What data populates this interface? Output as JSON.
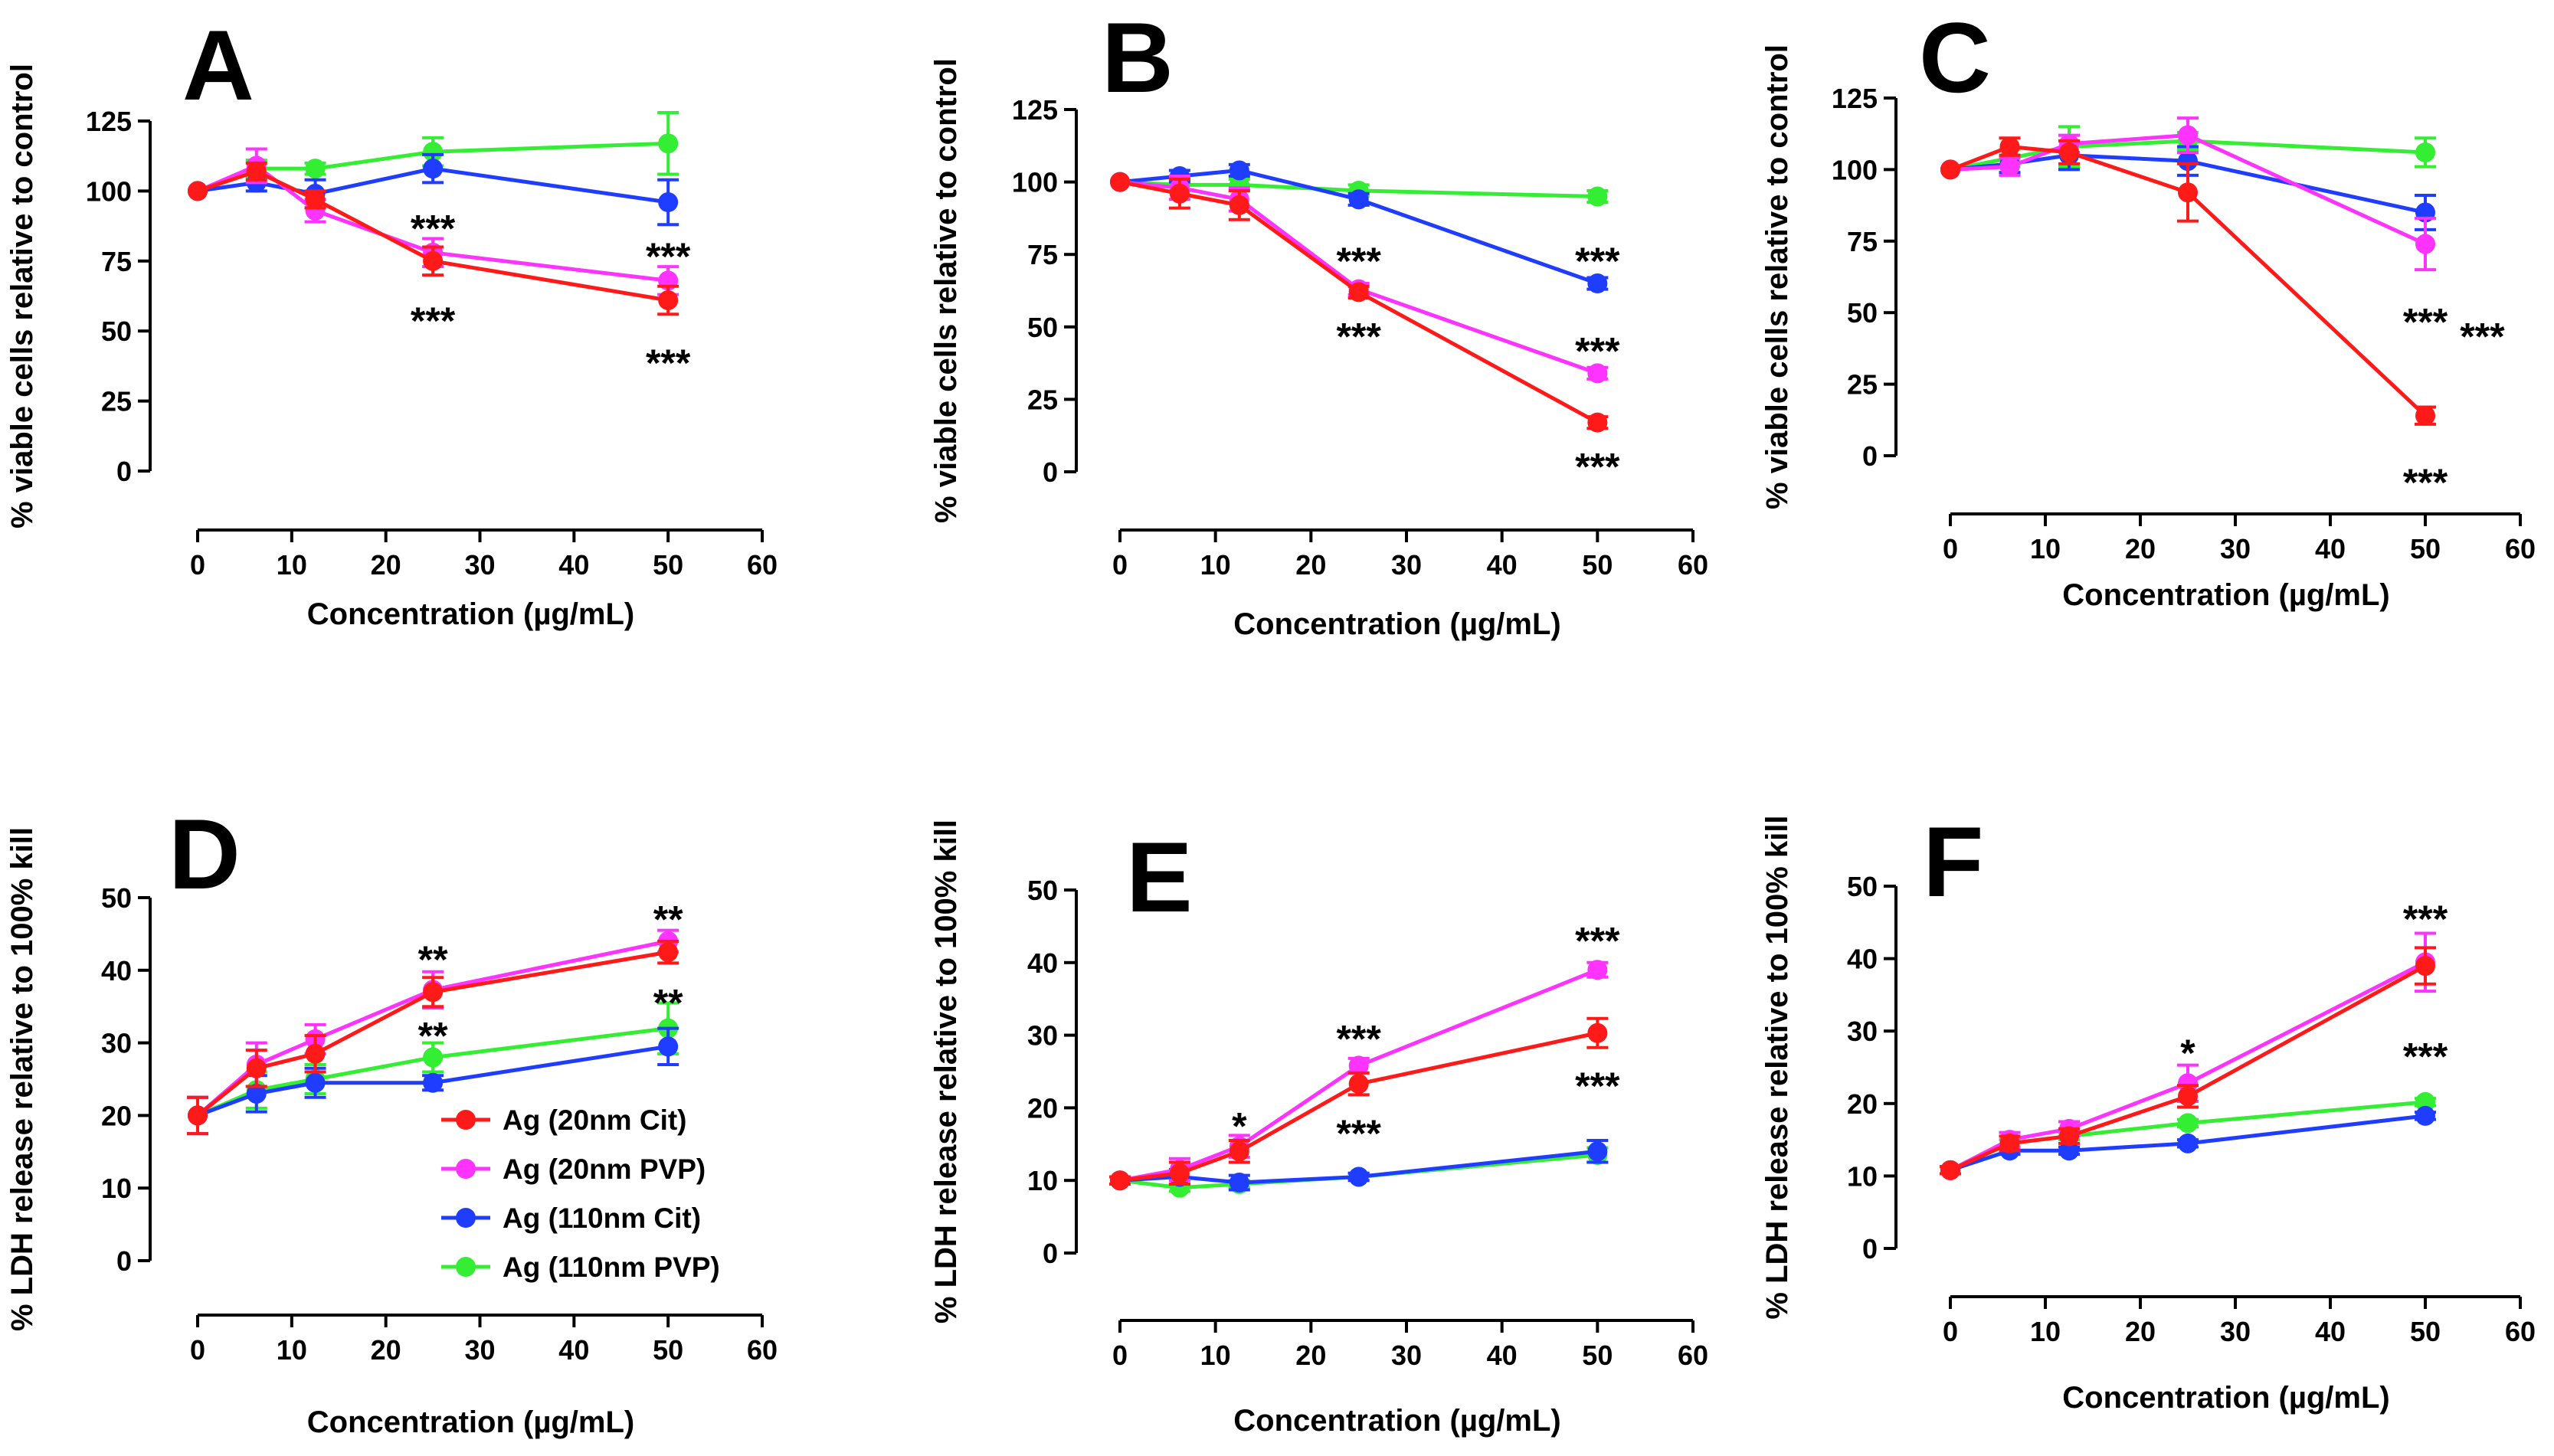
{
  "colors": {
    "Ag (20nm Cit)": "#ff1a1a",
    "Ag (20nm PVP)": "#ff33ff",
    "Ag (110nm Cit)": "#1f3dff",
    "Ag (110nm PVP)": "#33ee33"
  },
  "legend": [
    "Ag (20nm Cit)",
    "Ag (20nm PVP)",
    "Ag (110nm Cit)",
    "Ag (110nm PVP)"
  ],
  "chart_data": [
    {
      "type": "line",
      "panel": "A",
      "xlabel": "Concentration (µg/mL)",
      "ylabel": "% viable cells relative to control",
      "xlim": [
        0,
        60
      ],
      "ylim": [
        0,
        125
      ],
      "xticks": [
        0,
        10,
        20,
        30,
        40,
        50,
        60
      ],
      "yticks": [
        0,
        25,
        50,
        75,
        100,
        125
      ],
      "x": [
        0,
        6.25,
        12.5,
        25,
        50
      ],
      "series": [
        {
          "name": "Ag (20nm Cit)",
          "values": [
            100,
            107,
            97,
            75,
            61
          ],
          "errors": [
            0,
            3,
            3,
            5,
            5
          ]
        },
        {
          "name": "Ag (20nm PVP)",
          "values": [
            100,
            109,
            93,
            78,
            68
          ],
          "errors": [
            0,
            6,
            4,
            5,
            5
          ]
        },
        {
          "name": "Ag (110nm Cit)",
          "values": [
            100,
            103,
            99,
            108,
            96
          ],
          "errors": [
            0,
            3,
            5,
            5,
            8
          ]
        },
        {
          "name": "Ag (110nm PVP)",
          "values": [
            100,
            108,
            108,
            114,
            117
          ],
          "errors": [
            0,
            3,
            2,
            5,
            11
          ]
        }
      ],
      "annotations": [
        {
          "text": "***",
          "x": 25,
          "y": 88
        },
        {
          "text": "***",
          "x": 25,
          "y": 55
        },
        {
          "text": "***",
          "x": 50,
          "y": 78
        },
        {
          "text": "***",
          "x": 50,
          "y": 40
        }
      ]
    },
    {
      "type": "line",
      "panel": "B",
      "xlabel": "Concentration (µg/mL)",
      "ylabel": "% viable cells relative to control",
      "xlim": [
        0,
        60
      ],
      "ylim": [
        0,
        125
      ],
      "xticks": [
        0,
        10,
        20,
        30,
        40,
        50,
        60
      ],
      "yticks": [
        0,
        25,
        50,
        75,
        100,
        125
      ],
      "x": [
        0,
        6.25,
        12.5,
        25,
        50
      ],
      "series": [
        {
          "name": "Ag (20nm Cit)",
          "values": [
            100,
            96,
            92,
            62,
            17
          ],
          "errors": [
            0,
            5,
            5,
            2,
            2
          ]
        },
        {
          "name": "Ag (20nm PVP)",
          "values": [
            100,
            98,
            94,
            63,
            34
          ],
          "errors": [
            0,
            4,
            4,
            2,
            2
          ]
        },
        {
          "name": "Ag (110nm Cit)",
          "values": [
            100,
            102,
            104,
            94,
            65
          ],
          "errors": [
            0,
            2,
            2,
            2,
            2
          ]
        },
        {
          "name": "Ag (110nm PVP)",
          "values": [
            100,
            99,
            99,
            97,
            95
          ],
          "errors": [
            0,
            2,
            2,
            2,
            2
          ]
        }
      ],
      "annotations": [
        {
          "text": "***",
          "x": 25,
          "y": 74
        },
        {
          "text": "***",
          "x": 25,
          "y": 48
        },
        {
          "text": "***",
          "x": 50,
          "y": 74
        },
        {
          "text": "***",
          "x": 50,
          "y": 43
        },
        {
          "text": "***",
          "x": 50,
          "y": 3
        }
      ]
    },
    {
      "type": "line",
      "panel": "C",
      "xlabel": "Concentration (µg/mL)",
      "ylabel": "% viable cells relative to control",
      "xlim": [
        0,
        60
      ],
      "ylim": [
        0,
        125
      ],
      "xticks": [
        0,
        10,
        20,
        30,
        40,
        50,
        60
      ],
      "yticks": [
        0,
        25,
        50,
        75,
        100,
        125
      ],
      "x": [
        0,
        6.25,
        12.5,
        25,
        50
      ],
      "series": [
        {
          "name": "Ag (20nm Cit)",
          "values": [
            100,
            108,
            106,
            92,
            14
          ],
          "errors": [
            0,
            3,
            4,
            10,
            3
          ]
        },
        {
          "name": "Ag (20nm PVP)",
          "values": [
            100,
            101,
            109,
            112,
            74
          ],
          "errors": [
            0,
            3,
            3,
            6,
            9
          ]
        },
        {
          "name": "Ag (110nm Cit)",
          "values": [
            100,
            102,
            105,
            103,
            85
          ],
          "errors": [
            0,
            3,
            5,
            5,
            6
          ]
        },
        {
          "name": "Ag (110nm PVP)",
          "values": [
            100,
            104,
            108,
            110,
            106
          ],
          "errors": [
            0,
            3,
            7,
            3,
            5
          ]
        }
      ],
      "annotations": [
        {
          "text": "***",
          "x": 56,
          "y": 43
        },
        {
          "text": "***",
          "x": 50,
          "y": 48
        },
        {
          "text": "***",
          "x": 50,
          "y": -8
        }
      ]
    },
    {
      "type": "line",
      "panel": "D",
      "xlabel": "Concentration (µg/mL)",
      "ylabel": "% LDH release relative to 100% kill",
      "xlim": [
        0,
        60
      ],
      "ylim": [
        0,
        50
      ],
      "xticks": [
        0,
        10,
        20,
        30,
        40,
        50,
        60
      ],
      "yticks": [
        0,
        10,
        20,
        30,
        40,
        50
      ],
      "x": [
        0,
        6.25,
        12.5,
        25,
        50
      ],
      "series": [
        {
          "name": "Ag (20nm Cit)",
          "values": [
            20,
            26.5,
            28.5,
            37,
            42.5
          ],
          "errors": [
            2.5,
            2.5,
            2.5,
            2,
            1.5
          ]
        },
        {
          "name": "Ag (20nm PVP)",
          "values": [
            20,
            27,
            30.5,
            37.3,
            44
          ],
          "errors": [
            2.5,
            3,
            2,
            2.5,
            1.5
          ]
        },
        {
          "name": "Ag (110nm Cit)",
          "values": [
            20,
            23,
            24.5,
            24.5,
            29.5
          ],
          "errors": [
            2.5,
            2.5,
            2,
            1,
            2.5
          ]
        },
        {
          "name": "Ag (110nm PVP)",
          "values": [
            20,
            23.5,
            25,
            28,
            32
          ],
          "errors": [
            2.5,
            2.5,
            2,
            2,
            3.5
          ]
        }
      ],
      "annotations": [
        {
          "text": "**",
          "x": 25,
          "y": 42
        },
        {
          "text": "**",
          "x": 25,
          "y": 31.5
        },
        {
          "text": "**",
          "x": 50,
          "y": 47.5
        },
        {
          "text": "**",
          "x": 50,
          "y": 36
        }
      ]
    },
    {
      "type": "line",
      "panel": "E",
      "xlabel": "Concentration (µg/mL)",
      "ylabel": "% LDH release relative to 100% kill",
      "xlim": [
        0,
        60
      ],
      "ylim": [
        0,
        50
      ],
      "xticks": [
        0,
        10,
        20,
        30,
        40,
        50,
        60
      ],
      "yticks": [
        0,
        10,
        20,
        30,
        40,
        50
      ],
      "x": [
        0,
        6.25,
        12.5,
        25,
        50
      ],
      "series": [
        {
          "name": "Ag (20nm Cit)",
          "values": [
            10,
            11,
            14,
            23.3,
            30.3
          ],
          "errors": [
            0.5,
            1.5,
            1.5,
            1.5,
            2
          ]
        },
        {
          "name": "Ag (20nm PVP)",
          "values": [
            10,
            11.5,
            14.7,
            25.8,
            39
          ],
          "errors": [
            0.5,
            1.5,
            1.5,
            1,
            1
          ]
        },
        {
          "name": "Ag (110nm Cit)",
          "values": [
            10,
            10.5,
            9.7,
            10.5,
            14
          ],
          "errors": [
            0.5,
            1,
            1,
            0.5,
            1.5
          ]
        },
        {
          "name": "Ag (110nm PVP)",
          "values": [
            10,
            9,
            9.5,
            10.5,
            13.5
          ],
          "errors": [
            0.5,
            0.5,
            0.5,
            0.5,
            1
          ]
        }
      ],
      "annotations": [
        {
          "text": "*",
          "x": 12.5,
          "y": 18
        },
        {
          "text": "***",
          "x": 25,
          "y": 30
        },
        {
          "text": "***",
          "x": 25,
          "y": 17
        },
        {
          "text": "***",
          "x": 50,
          "y": 43.5
        },
        {
          "text": "***",
          "x": 50,
          "y": 23.5
        }
      ]
    },
    {
      "type": "line",
      "panel": "F",
      "xlabel": "Concentration (µg/mL)",
      "ylabel": "% LDH release relative to 100% kill",
      "xlim": [
        0,
        60
      ],
      "ylim": [
        0,
        50
      ],
      "xticks": [
        0,
        10,
        20,
        30,
        40,
        50,
        60
      ],
      "yticks": [
        0,
        10,
        20,
        30,
        40,
        50
      ],
      "x": [
        0,
        6.25,
        12.5,
        25,
        50
      ],
      "series": [
        {
          "name": "Ag (20nm Cit)",
          "values": [
            10.8,
            14.5,
            15.5,
            21,
            39
          ],
          "errors": [
            0.5,
            1,
            1,
            1.5,
            2.5
          ]
        },
        {
          "name": "Ag (20nm PVP)",
          "values": [
            10.8,
            15,
            16.5,
            22.8,
            39.5
          ],
          "errors": [
            0.5,
            1,
            1,
            2.5,
            4
          ]
        },
        {
          "name": "Ag (110nm Cit)",
          "values": [
            10.8,
            13.5,
            13.5,
            14.5,
            18.3
          ],
          "errors": [
            0.5,
            0.5,
            0.5,
            0.5,
            0.5
          ]
        },
        {
          "name": "Ag (110nm PVP)",
          "values": [
            10.8,
            14.5,
            15.5,
            17.3,
            20.2
          ],
          "errors": [
            0.5,
            0.5,
            0.5,
            0.5,
            0.5
          ]
        }
      ],
      "annotations": [
        {
          "text": "*",
          "x": 25,
          "y": 27.5
        },
        {
          "text": "***",
          "x": 50,
          "y": 46
        },
        {
          "text": "***",
          "x": 50,
          "y": 27
        }
      ]
    }
  ]
}
